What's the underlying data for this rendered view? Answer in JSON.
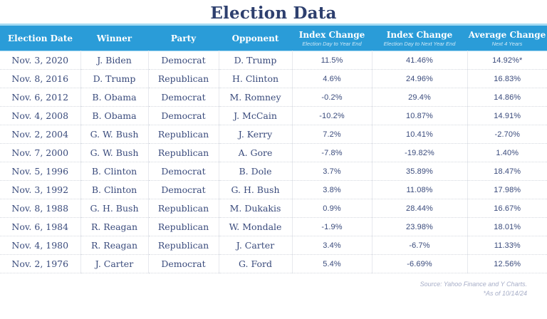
{
  "page": {
    "title": "Election Data"
  },
  "chart_data": {
    "type": "table",
    "title": "Election Data",
    "columns": [
      {
        "label": "Election Date",
        "sublabel": ""
      },
      {
        "label": "Winner",
        "sublabel": ""
      },
      {
        "label": "Party",
        "sublabel": ""
      },
      {
        "label": "Opponent",
        "sublabel": ""
      },
      {
        "label": "Index Change",
        "sublabel": "Election Day to Year End"
      },
      {
        "label": "Index Change",
        "sublabel": "Election Day to Next Year End"
      },
      {
        "label": "Average Change",
        "sublabel": "Next 4 Years"
      }
    ],
    "rows": [
      [
        "Nov. 3, 2020",
        "J. Biden",
        "Democrat",
        "D. Trump",
        "11.5%",
        "41.46%",
        "14.92%*"
      ],
      [
        "Nov. 8, 2016",
        "D. Trump",
        "Republican",
        "H. Clinton",
        "4.6%",
        "24.96%",
        "16.83%"
      ],
      [
        "Nov. 6, 2012",
        "B. Obama",
        "Democrat",
        "M. Romney",
        "-0.2%",
        "29.4%",
        "14.86%"
      ],
      [
        "Nov. 4, 2008",
        "B. Obama",
        "Democrat",
        "J. McCain",
        "-10.2%",
        "10.87%",
        "14.91%"
      ],
      [
        "Nov. 2, 2004",
        "G. W. Bush",
        "Republican",
        "J. Kerry",
        "7.2%",
        "10.41%",
        "-2.70%"
      ],
      [
        "Nov. 7, 2000",
        "G. W. Bush",
        "Republican",
        "A. Gore",
        "-7.8%",
        "-19.82%",
        "1.40%"
      ],
      [
        "Nov. 5, 1996",
        "B. Clinton",
        "Democrat",
        "B. Dole",
        "3.7%",
        "35.89%",
        "18.47%"
      ],
      [
        "Nov. 3, 1992",
        "B. Clinton",
        "Democrat",
        "G. H. Bush",
        "3.8%",
        "11.08%",
        "17.98%"
      ],
      [
        "Nov. 8, 1988",
        "G. H. Bush",
        "Republican",
        "M. Dukakis",
        "0.9%",
        "28.44%",
        "16.67%"
      ],
      [
        "Nov. 6, 1984",
        "R. Reagan",
        "Republican",
        "W. Mondale",
        "-1.9%",
        "23.98%",
        "18.01%"
      ],
      [
        "Nov. 4, 1980",
        "R. Reagan",
        "Republican",
        "J. Carter",
        "3.4%",
        "-6.7%",
        "11.33%"
      ],
      [
        "Nov. 2, 1976",
        "J. Carter",
        "Democrat",
        "G. Ford",
        "5.4%",
        "-6.69%",
        "12.56%"
      ]
    ]
  },
  "footer": {
    "source": "Source: Yahoo Finance and Y Charts.",
    "note": "*As of 10/14/24"
  },
  "colors": {
    "header_bg": "#2a9cd8",
    "header_accent": "#a5dbf3",
    "title_text": "#2d3f6e",
    "body_text": "#3a4b7c",
    "footer_text": "#a6adc7"
  }
}
